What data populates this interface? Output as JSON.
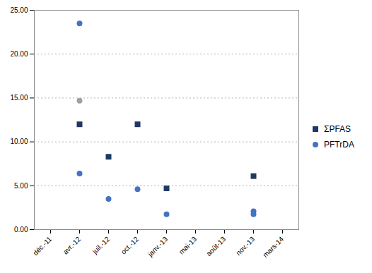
{
  "chart_data": {
    "type": "scatter",
    "categories": [
      "déc.-11",
      "avr.-12",
      "juil.-12",
      "oct.-12",
      "janv.-13",
      "mai-13",
      "août-13",
      "nov.-13",
      "mars-14"
    ],
    "series": [
      {
        "name": "ΣPFAS",
        "color": "#1F3864",
        "marker": "square",
        "x": [
          "avr.-12",
          "juil.-12",
          "oct.-12",
          "janv.-13",
          "nov.-13"
        ],
        "values": [
          12.0,
          8.3,
          12.0,
          4.7,
          6.1
        ]
      },
      {
        "name": "PFTrDA",
        "color": "#4472C4",
        "marker": "circle",
        "x": [
          "avr.-12",
          "juil.-12",
          "oct.-12",
          "janv.-13",
          "nov.-13",
          "nov.-13"
        ],
        "values": [
          6.4,
          3.5,
          4.6,
          1.75,
          2.1,
          1.75
        ]
      },
      {
        "color": "#A0A0A0",
        "marker": "circle",
        "x": [
          "avr.-12"
        ],
        "values": [
          14.7
        ]
      },
      {
        "color": "#4472C4",
        "marker": "circle",
        "x": [
          "avr.-12"
        ],
        "values": [
          23.5
        ]
      }
    ],
    "ylim": [
      0,
      25
    ],
    "yticks": [
      {
        "value": 0,
        "label": "0.00"
      },
      {
        "value": 5,
        "label": "5.00"
      },
      {
        "value": 10,
        "label": "10.00"
      },
      {
        "value": 15,
        "label": "15.00"
      },
      {
        "value": 20,
        "label": "20.00"
      },
      {
        "value": 25,
        "label": "25.00"
      }
    ],
    "grid": true,
    "legend": "right"
  }
}
